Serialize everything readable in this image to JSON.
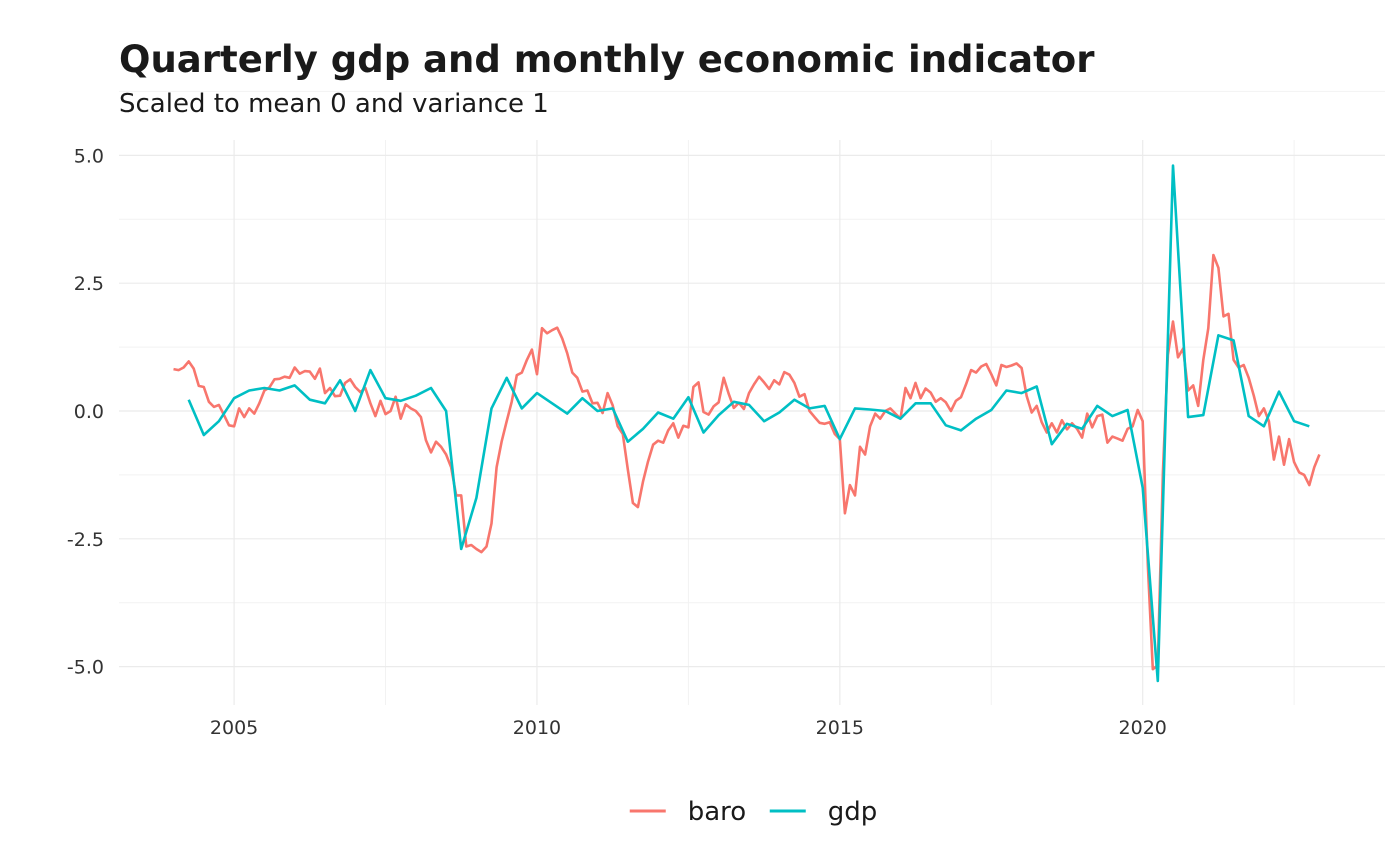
{
  "chart_data": {
    "type": "line",
    "title": "Quarterly gdp and monthly economic indicator",
    "subtitle": "Scaled to mean 0 and variance 1",
    "xlabel": "",
    "ylabel": "",
    "xlim": [
      2003.1,
      2024.0
    ],
    "ylim": [
      -5.75,
      5.3
    ],
    "x_ticks": [
      2005,
      2010,
      2015,
      2020
    ],
    "x_tick_labels": [
      "2005",
      "2010",
      "2015",
      "2020"
    ],
    "y_ticks": [
      -5.0,
      -2.5,
      0.0,
      2.5,
      5.0
    ],
    "y_tick_labels": [
      "-5.0",
      "-2.5",
      "0.0",
      "2.5",
      "5.0"
    ],
    "grid": true,
    "legend_position": "bottom",
    "series": [
      {
        "name": "baro",
        "color": "#F8766D",
        "x_start": 2004.0,
        "x_step": 0.0833333,
        "values": [
          0.82,
          0.8,
          0.85,
          0.97,
          0.83,
          0.49,
          0.47,
          0.18,
          0.08,
          0.12,
          -0.08,
          -0.28,
          -0.3,
          0.05,
          -0.12,
          0.05,
          -0.05,
          0.15,
          0.4,
          0.46,
          0.62,
          0.63,
          0.67,
          0.65,
          0.85,
          0.73,
          0.78,
          0.77,
          0.63,
          0.83,
          0.35,
          0.45,
          0.29,
          0.3,
          0.55,
          0.62,
          0.47,
          0.37,
          0.45,
          0.15,
          -0.1,
          0.2,
          -0.06,
          0.0,
          0.28,
          -0.15,
          0.13,
          0.05,
          0.0,
          -0.12,
          -0.57,
          -0.81,
          -0.6,
          -0.7,
          -0.85,
          -1.1,
          -1.65,
          -1.65,
          -2.65,
          -2.62,
          -2.7,
          -2.76,
          -2.65,
          -2.2,
          -1.1,
          -0.6,
          -0.2,
          0.18,
          0.7,
          0.75,
          1.0,
          1.2,
          0.72,
          1.62,
          1.52,
          1.58,
          1.63,
          1.42,
          1.13,
          0.75,
          0.65,
          0.38,
          0.4,
          0.15,
          0.16,
          -0.04,
          0.35,
          0.11,
          -0.3,
          -0.45,
          -1.14,
          -1.8,
          -1.88,
          -1.38,
          -0.99,
          -0.66,
          -0.58,
          -0.62,
          -0.38,
          -0.24,
          -0.52,
          -0.29,
          -0.32,
          0.47,
          0.56,
          -0.02,
          -0.07,
          0.09,
          0.17,
          0.65,
          0.33,
          0.06,
          0.16,
          0.04,
          0.35,
          0.52,
          0.67,
          0.56,
          0.43,
          0.6,
          0.52,
          0.76,
          0.71,
          0.55,
          0.28,
          0.33,
          0.0,
          -0.12,
          -0.23,
          -0.25,
          -0.22,
          -0.45,
          -0.55,
          -2.0,
          -1.45,
          -1.65,
          -0.7,
          -0.85,
          -0.3,
          -0.05,
          -0.15,
          0.0,
          0.05,
          -0.05,
          -0.15,
          0.45,
          0.25,
          0.55,
          0.25,
          0.44,
          0.36,
          0.18,
          0.25,
          0.17,
          0.0,
          0.2,
          0.27,
          0.52,
          0.8,
          0.75,
          0.87,
          0.92,
          0.72,
          0.5,
          0.9,
          0.86,
          0.89,
          0.93,
          0.84,
          0.3,
          -0.03,
          0.1,
          -0.22,
          -0.42,
          -0.24,
          -0.42,
          -0.18,
          -0.36,
          -0.24,
          -0.35,
          -0.52,
          -0.05,
          -0.32,
          -0.1,
          -0.07,
          -0.62,
          -0.5,
          -0.54,
          -0.58,
          -0.35,
          -0.3,
          0.02,
          -0.2,
          -3.0,
          -5.05,
          -4.97,
          -1.2,
          1.1,
          1.75,
          1.05,
          1.22,
          0.4,
          0.5,
          0.1,
          1.0,
          1.62,
          3.05,
          2.8,
          1.85,
          1.9,
          1.0,
          0.85,
          0.9,
          0.65,
          0.3,
          -0.1,
          0.05,
          -0.2,
          -0.95,
          -0.5,
          -1.05,
          -0.55,
          -1.0,
          -1.2,
          -1.25,
          -1.45,
          -1.1,
          -0.85
        ]
      },
      {
        "name": "gdp",
        "color": "#00BFC4",
        "x_start": 2004.25,
        "x_step": 0.25,
        "values": [
          0.22,
          -0.47,
          -0.2,
          0.25,
          0.4,
          0.45,
          0.4,
          0.5,
          0.22,
          0.15,
          0.6,
          0.0,
          0.8,
          0.25,
          0.2,
          0.3,
          0.45,
          0.0,
          -2.7,
          -1.7,
          0.05,
          0.65,
          0.05,
          0.35,
          0.15,
          -0.05,
          0.25,
          0.0,
          0.05,
          -0.6,
          -0.35,
          -0.03,
          -0.15,
          0.27,
          -0.42,
          -0.08,
          0.18,
          0.12,
          -0.2,
          -0.03,
          0.22,
          0.05,
          0.1,
          -0.55,
          0.05,
          0.03,
          0.0,
          -0.15,
          0.15,
          0.15,
          -0.28,
          -0.38,
          -0.15,
          0.02,
          0.4,
          0.35,
          0.48,
          -0.65,
          -0.25,
          -0.35,
          0.1,
          -0.1,
          0.02,
          -1.5,
          -5.28,
          4.8,
          -0.12,
          -0.08,
          1.48,
          1.38,
          -0.1,
          -0.3,
          0.38,
          -0.2,
          -0.3
        ]
      }
    ]
  }
}
